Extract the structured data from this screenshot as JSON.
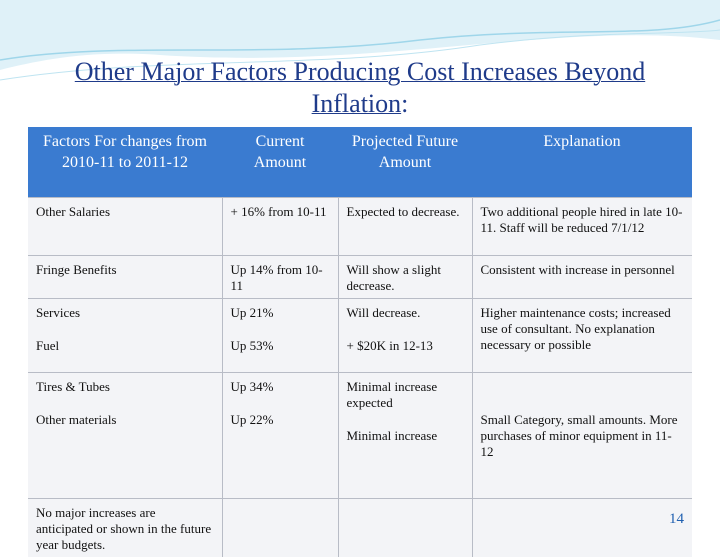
{
  "slide": {
    "title": "Other Major Factors Producing Cost Increases Beyond Inflation",
    "title_suffix": ":",
    "page_number": "14",
    "table": {
      "headers": [
        "Factors For changes from 2010-11 to 2011-12",
        "Current Amount",
        "Projected Future Amount",
        "Explanation"
      ],
      "rows": [
        {
          "factor": [
            "Other Salaries"
          ],
          "current": [
            "+ 16% from 10-11"
          ],
          "projected": [
            "Expected to decrease."
          ],
          "explanation": [
            "Two additional people hired in late 10-11.  Staff will be reduced 7/1/12"
          ]
        },
        {
          "factor": [
            "Fringe Benefits"
          ],
          "current": [
            "Up 14% from 10-11"
          ],
          "projected": [
            "Will show a slight decrease."
          ],
          "explanation": [
            "Consistent with increase in personnel"
          ]
        },
        {
          "factor": [
            "Services",
            "Fuel"
          ],
          "current": [
            "Up 21%",
            "Up 53%"
          ],
          "projected": [
            "Will decrease.",
            "+ $20K in 12-13"
          ],
          "explanation": [
            "Higher maintenance costs; increased use of consultant. No explanation necessary or possible"
          ]
        },
        {
          "factor": [
            "Tires & Tubes",
            "Other materials"
          ],
          "current": [
            "Up 34%",
            "Up 22%"
          ],
          "projected": [
            "Minimal increase expected",
            "Minimal increase"
          ],
          "explanation": [
            "Small Category, small amounts. More purchases of minor equipment in 11-12"
          ]
        },
        {
          "factor": [
            "No major increases are anticipated or shown in the future year budgets."
          ]
        }
      ]
    }
  }
}
